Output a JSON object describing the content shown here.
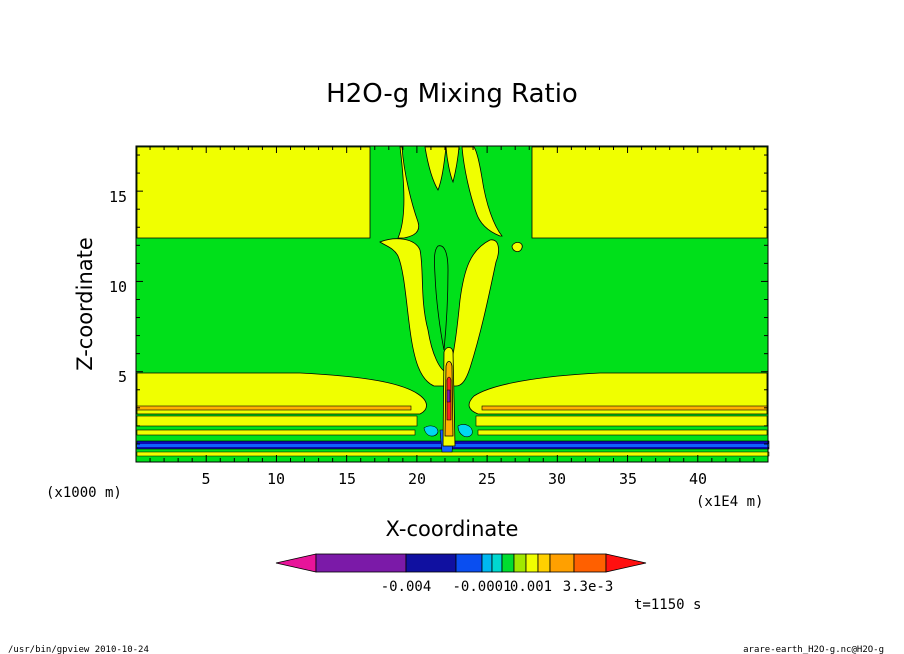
{
  "chart_data": {
    "type": "heatmap",
    "title": "H2O-g Mixing Ratio",
    "xlabel": "X-coordinate",
    "ylabel": "Z-coordinate",
    "x_unit_left": "(x1000 m)",
    "x_unit_right": "(x1E4 m)",
    "xlim": [
      0,
      45
    ],
    "ylim": [
      0,
      17.5
    ],
    "x_ticks": [
      "5",
      "10",
      "15",
      "20",
      "25",
      "30",
      "35",
      "40"
    ],
    "x_tick_values": [
      5,
      10,
      15,
      20,
      25,
      30,
      35,
      40
    ],
    "y_ticks": [
      "5",
      "10",
      "15"
    ],
    "y_tick_values": [
      5,
      10,
      15
    ],
    "colorbar": {
      "colors": [
        "#e8149a",
        "#7b1aa8",
        "#1010a0",
        "#0a4ef0",
        "#00b8f0",
        "#00d8d0",
        "#00dd30",
        "#a0e800",
        "#f0ff00",
        "#ffd000",
        "#ffa000",
        "#ff6000",
        "#ff1010"
      ],
      "labels": [
        "-0.004",
        "-0.0001",
        "0.001",
        "3.3e-3"
      ]
    },
    "time_label": "t=1150 s",
    "palette": {
      "green": "#00e01a",
      "yellow": "#f0ff00",
      "blue_dark": "#0a0ab4",
      "blue": "#1060ff",
      "cyan": "#00d8f0",
      "orange": "#ffb000",
      "red": "#ff2020",
      "purple": "#8a10b0"
    }
  },
  "footer": {
    "left": "/usr/bin/gpview  2010-10-24",
    "right": "arare-earth_H2O-g.nc@H2O-g"
  }
}
